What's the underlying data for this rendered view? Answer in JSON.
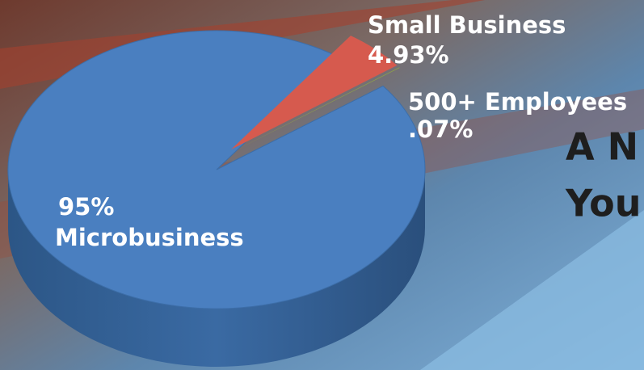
{
  "chart_data": {
    "type": "pie",
    "categories": [
      "Microbusiness",
      "Small Business",
      "500+ Employees"
    ],
    "values": [
      95,
      4.93,
      0.07
    ],
    "value_labels": [
      "95%",
      "4.93%",
      ".07%"
    ],
    "colors": [
      "#4a7fc0",
      "#d65a4e",
      "#8fa646"
    ]
  },
  "background_text": [
    "A N",
    "You"
  ]
}
